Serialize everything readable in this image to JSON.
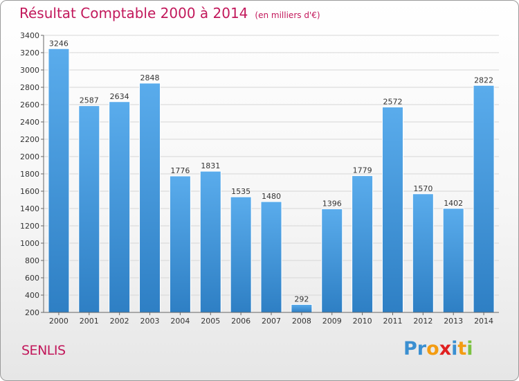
{
  "header": {
    "title": "Résultat Comptable 2000 à 2014",
    "unit": "(en milliers d'€)"
  },
  "footer": {
    "commune": "SENLIS",
    "logo_letters": [
      {
        "ch": "P",
        "color": "#3a8fd1"
      },
      {
        "ch": "r",
        "color": "#3a8fd1"
      },
      {
        "ch": "o",
        "color": "#f39c12"
      },
      {
        "ch": "x",
        "color": "#e02020"
      },
      {
        "ch": "i",
        "color": "#3a8fd1"
      },
      {
        "ch": "t",
        "color": "#f39c12"
      },
      {
        "ch": "i",
        "color": "#7cc242"
      }
    ]
  },
  "chart_data": {
    "type": "bar",
    "title": "Résultat Comptable 2000 à 2014",
    "subtitle": "(en milliers d'€)",
    "xlabel": "",
    "ylabel": "",
    "categories": [
      "2000",
      "2001",
      "2002",
      "2003",
      "2004",
      "2005",
      "2006",
      "2007",
      "2008",
      "2009",
      "2010",
      "2011",
      "2012",
      "2013",
      "2014"
    ],
    "values": [
      3246,
      2587,
      2634,
      2848,
      1776,
      1831,
      1535,
      1480,
      292,
      1396,
      1779,
      2572,
      1570,
      1402,
      2822
    ],
    "ylim": [
      200,
      3400
    ],
    "yticks": [
      200,
      400,
      600,
      800,
      1000,
      1200,
      1400,
      1600,
      1800,
      2000,
      2200,
      2400,
      2600,
      2800,
      3000,
      3200,
      3400
    ],
    "grid": true,
    "legend": "none",
    "colors": {
      "bar_light": "#5aacec",
      "bar_dark": "#2e7fc4",
      "grid": "#d6d6d6",
      "axis": "#666666"
    }
  }
}
